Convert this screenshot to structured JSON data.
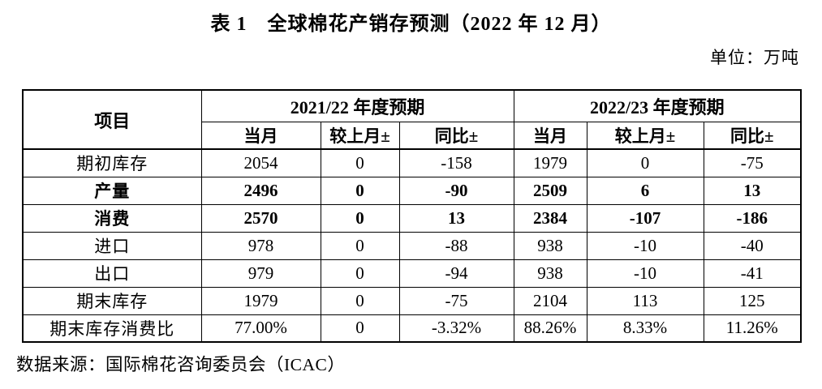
{
  "title": "表 1　全球棉花产销存预测（2022 年 12 月）",
  "unit_label": "单位：万吨",
  "table": {
    "item_header": "项目",
    "groups": [
      {
        "label": "2021/22 年度预期"
      },
      {
        "label": "2022/23 年度预期"
      }
    ],
    "sub_headers": [
      "当月",
      "较上月±",
      "同比±"
    ],
    "rows": [
      {
        "label": "期初库存",
        "bold": false,
        "values": [
          "2054",
          "0",
          "-158",
          "1979",
          "0",
          "-75"
        ]
      },
      {
        "label": "产量",
        "bold": true,
        "values": [
          "2496",
          "0",
          "-90",
          "2509",
          "6",
          "13"
        ]
      },
      {
        "label": "消费",
        "bold": true,
        "values": [
          "2570",
          "0",
          "13",
          "2384",
          "-107",
          "-186"
        ]
      },
      {
        "label": "进口",
        "bold": false,
        "values": [
          "978",
          "0",
          "-88",
          "938",
          "-10",
          "-40"
        ]
      },
      {
        "label": "出口",
        "bold": false,
        "values": [
          "979",
          "0",
          "-94",
          "938",
          "-10",
          "-41"
        ]
      },
      {
        "label": "期末库存",
        "bold": false,
        "values": [
          "1979",
          "0",
          "-75",
          "2104",
          "113",
          "125"
        ]
      },
      {
        "label": "期末库存消费比",
        "bold": false,
        "values": [
          "77.00%",
          "0",
          "-3.32%",
          "88.26%",
          "8.33%",
          "11.26%"
        ]
      }
    ]
  },
  "source_note": "数据来源：国际棉花咨询委员会（ICAC）"
}
